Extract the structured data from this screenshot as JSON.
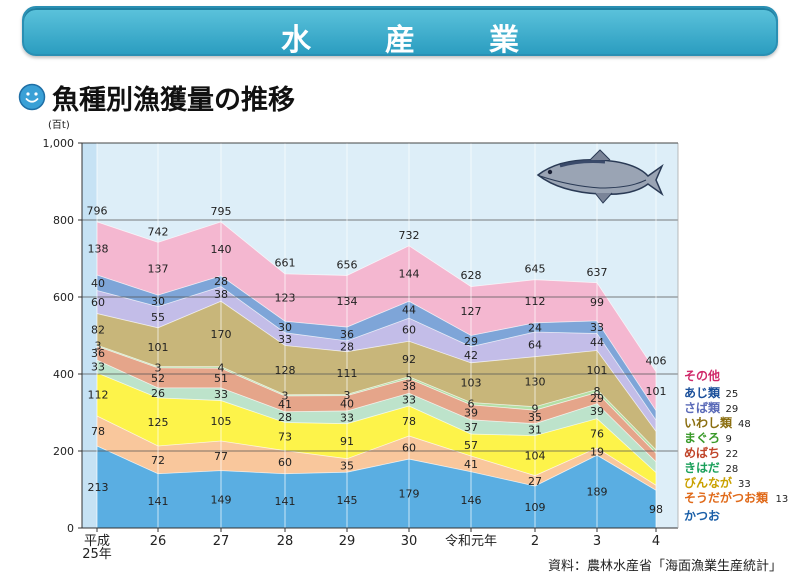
{
  "header": {
    "title": "水　産　業"
  },
  "heading": "魚種別漁獲量の推移",
  "source": "資料：農林水産省「海面漁業生産統計」",
  "chart_data": {
    "type": "area",
    "stacked": true,
    "ylabel": "(百t)",
    "ylim": [
      0,
      1000
    ],
    "yticks": [
      0,
      200,
      400,
      600,
      800,
      1000
    ],
    "ytick_labels": [
      "0",
      "200",
      "400",
      "600",
      "800",
      "1,000"
    ],
    "categories": [
      "平成\n25年",
      "26",
      "27",
      "28",
      "29",
      "30",
      "令和元年",
      "2",
      "3",
      "4"
    ],
    "totals": [
      796,
      742,
      795,
      661,
      656,
      732,
      628,
      645,
      637,
      406
    ],
    "series": [
      {
        "name": "かつお",
        "color": "#5aaee2",
        "label_color": "#1a5fa8",
        "values": [
          213,
          141,
          149,
          141,
          145,
          179,
          146,
          109,
          189,
          98
        ]
      },
      {
        "name": "そうだがつお類",
        "color": "#f9c79c",
        "label_color": "#e06a1a",
        "values": [
          78,
          72,
          77,
          60,
          35,
          60,
          41,
          27,
          19,
          13
        ]
      },
      {
        "name": "びんなが",
        "color": "#fdf34a",
        "label_color": "#c9a100",
        "values": [
          112,
          125,
          105,
          73,
          91,
          78,
          57,
          104,
          76,
          33
        ]
      },
      {
        "name": "きはだ",
        "color": "#bde3cb",
        "label_color": "#1aa05a",
        "values": [
          33,
          26,
          33,
          28,
          33,
          33,
          37,
          31,
          39,
          28
        ]
      },
      {
        "name": "めばち",
        "color": "#e5a58a",
        "label_color": "#c0452a",
        "values": [
          36,
          52,
          51,
          41,
          40,
          38,
          39,
          35,
          29,
          22
        ]
      },
      {
        "name": "まぐろ",
        "color": "#b4dfa6",
        "label_color": "#3a9a2a",
        "values": [
          3,
          3,
          4,
          3,
          3,
          5,
          6,
          9,
          8,
          9
        ]
      },
      {
        "name": "いわし類",
        "color": "#c8b67a",
        "label_color": "#8a6e10",
        "values": [
          82,
          101,
          170,
          128,
          111,
          92,
          103,
          130,
          101,
          48
        ]
      },
      {
        "name": "さば類",
        "color": "#c3bde8",
        "label_color": "#5a6ab8",
        "values": [
          60,
          55,
          38,
          33,
          28,
          60,
          42,
          64,
          44,
          29
        ]
      },
      {
        "name": "あじ類",
        "color": "#7ea5d8",
        "label_color": "#1a4f9a",
        "values": [
          40,
          30,
          28,
          30,
          36,
          44,
          29,
          24,
          33,
          25
        ]
      },
      {
        "name": "その他",
        "color": "#f4b7d0",
        "label_color": "#d02a6a",
        "values": [
          138,
          137,
          140,
          123,
          134,
          144,
          127,
          112,
          99,
          101
        ]
      }
    ]
  }
}
